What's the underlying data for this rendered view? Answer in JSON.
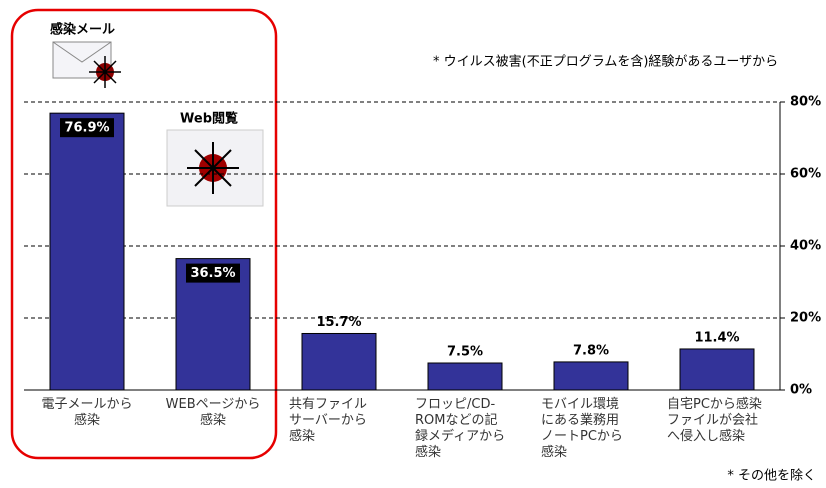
{
  "chart_data": {
    "type": "bar",
    "categories": [
      "電子メールから\n感染",
      "WEBページから\n感染",
      "共有ファイル\nサーバーから\n感染",
      "フロッピ/CD-\nROMなどの記\n録メディアから\n感染",
      "モバイル環境\nにある業務用\nノートPCから\n感染",
      "自宅PCから感染\nファイルが会社\nへ侵入し感染"
    ],
    "values": [
      76.9,
      36.5,
      15.7,
      7.5,
      7.8,
      11.4
    ],
    "value_labels": [
      "76.9%",
      "36.5%",
      "15.7%",
      "7.5%",
      "7.8%",
      "11.4%"
    ],
    "color": "#333399",
    "ylim": [
      0,
      80
    ],
    "yticks": [
      {
        "value": 0,
        "label": "0%"
      },
      {
        "value": 20,
        "label": "20%"
      },
      {
        "value": 40,
        "label": "40%"
      },
      {
        "value": 60,
        "label": "60%"
      },
      {
        "value": 80,
        "label": "80%"
      }
    ],
    "grid": true,
    "annotations": [
      "* ウイルス被害(不正プログラムを含)経験があるユーザから",
      "* その他を除く",
      "感染メール",
      "Web閲覧"
    ]
  }
}
